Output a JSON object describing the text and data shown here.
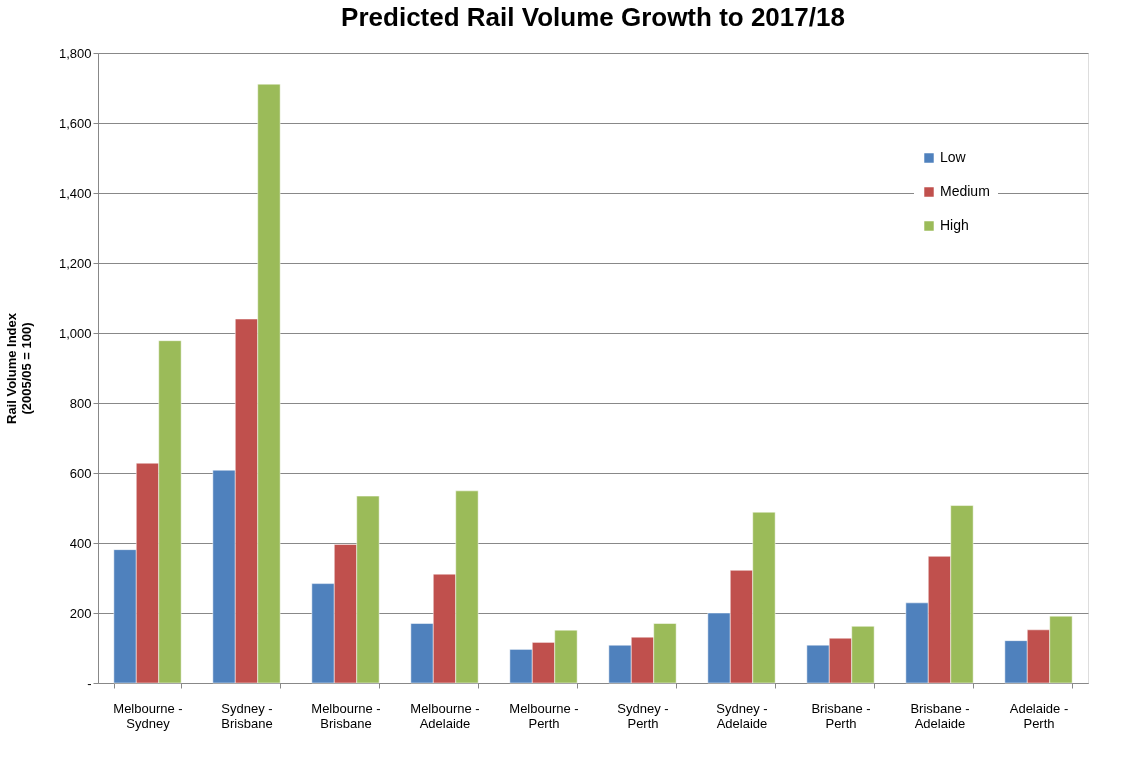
{
  "chart_data": {
    "type": "bar",
    "title": "Predicted Rail Volume Growth to 2017/18",
    "ylabel": "Rail Volume Index\n(2005/05 = 100)",
    "categories": [
      "Melbourne - Sydney",
      "Sydney - Brisbane",
      "Melbourne - Brisbane",
      "Melbourne - Adelaide",
      "Melbourne - Perth",
      "Sydney - Perth",
      "Sydney - Adelaide",
      "Brisbane - Perth",
      "Brisbane - Adelaide",
      "Adelaide - Perth"
    ],
    "series": [
      {
        "name": "Low",
        "color": "#4f81bd",
        "values": [
          381,
          608,
          284,
          170,
          96,
          108,
          200,
          108,
          229,
          121
        ]
      },
      {
        "name": "Medium",
        "color": "#c0504d",
        "values": [
          628,
          1040,
          396,
          311,
          116,
          131,
          322,
          128,
          362,
          152
        ]
      },
      {
        "name": "High",
        "color": "#9bbb59",
        "values": [
          978,
          1711,
          534,
          549,
          151,
          170,
          488,
          162,
          507,
          191
        ]
      }
    ],
    "ylim": [
      0,
      1800
    ],
    "yticks": [
      {
        "value": 0,
        "label": "-"
      },
      200,
      400,
      600,
      800,
      {
        "value": 1000,
        "label": "1,000"
      },
      {
        "value": 1200,
        "label": "1,200"
      },
      {
        "value": 1400,
        "label": "1,400"
      },
      {
        "value": 1600,
        "label": "1,600"
      },
      {
        "value": 1800,
        "label": "1,800"
      }
    ],
    "grid": "y",
    "legend": "top right"
  }
}
